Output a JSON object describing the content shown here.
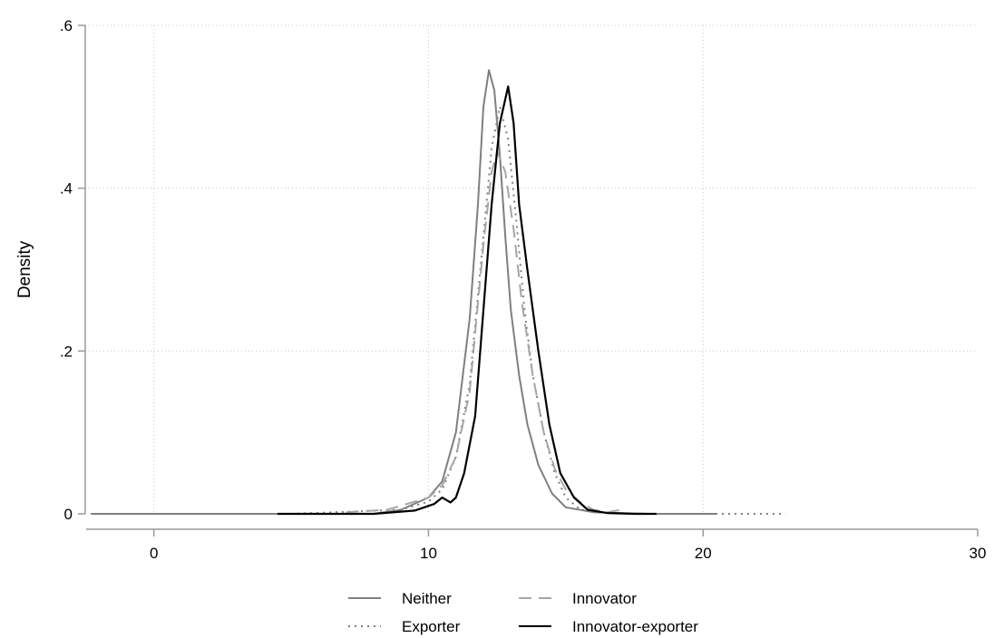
{
  "chart_data": {
    "type": "line",
    "title": "",
    "xlabel": "",
    "ylabel": "Density",
    "xlim": [
      -2.5,
      30
    ],
    "ylim": [
      0,
      0.6
    ],
    "grid": true,
    "legend_position": "bottom",
    "x_ticks": [
      {
        "value": 0,
        "label": "0"
      },
      {
        "value": 10,
        "label": "10"
      },
      {
        "value": 20,
        "label": "20"
      },
      {
        "value": 30,
        "label": "30"
      }
    ],
    "y_ticks": [
      {
        "value": 0,
        "label": "0"
      },
      {
        "value": 0.2,
        "label": ".2"
      },
      {
        "value": 0.4,
        "label": ".4"
      },
      {
        "value": 0.6,
        "label": ".6"
      }
    ],
    "series": [
      {
        "name": "Neither",
        "color": "#7f7f7f",
        "dash": "solid",
        "x": [
          -2.3,
          5,
          8,
          9,
          10,
          10.5,
          11,
          11.5,
          11.8,
          12.0,
          12.2,
          12.4,
          12.6,
          12.8,
          13.0,
          13.3,
          13.6,
          14.0,
          14.5,
          15.0,
          16,
          18,
          20.5
        ],
        "y": [
          0,
          0,
          0,
          0.005,
          0.02,
          0.04,
          0.1,
          0.24,
          0.38,
          0.5,
          0.545,
          0.52,
          0.44,
          0.34,
          0.25,
          0.17,
          0.11,
          0.06,
          0.025,
          0.008,
          0.002,
          0,
          0
        ]
      },
      {
        "name": "Exporter",
        "color": "#7f7f7f",
        "dash": "dotted",
        "x": [
          5,
          9,
          10,
          10.5,
          11,
          11.5,
          12.0,
          12.3,
          12.6,
          12.9,
          13.2,
          13.5,
          13.8,
          14.2,
          14.6,
          15.0,
          15.5,
          16,
          18,
          20,
          23
        ],
        "y": [
          0,
          0.005,
          0.015,
          0.03,
          0.07,
          0.16,
          0.34,
          0.45,
          0.5,
          0.46,
          0.36,
          0.25,
          0.17,
          0.1,
          0.05,
          0.02,
          0.006,
          0.002,
          0,
          0,
          0
        ]
      },
      {
        "name": "Innovator",
        "color": "#a6a6a6",
        "dash": "dashed",
        "x": [
          7,
          8.5,
          9,
          10,
          10.5,
          11,
          11.5,
          12.0,
          12.3,
          12.5,
          12.8,
          13.1,
          13.4,
          13.8,
          14.2,
          14.6,
          15.0,
          15.5,
          16,
          16.5,
          17.2
        ],
        "y": [
          0.002,
          0.005,
          0.01,
          0.02,
          0.035,
          0.07,
          0.15,
          0.33,
          0.42,
          0.445,
          0.42,
          0.35,
          0.26,
          0.17,
          0.1,
          0.055,
          0.03,
          0.015,
          0.005,
          0.002,
          0.006
        ]
      },
      {
        "name": "Innovator-exporter",
        "color": "#000000",
        "dash": "solid",
        "x": [
          4.5,
          8,
          9.5,
          10.2,
          10.5,
          10.8,
          11.0,
          11.3,
          11.7,
          12.0,
          12.3,
          12.6,
          12.9,
          13.1,
          13.3,
          13.6,
          14.0,
          14.4,
          14.8,
          15.3,
          15.8,
          16.5,
          17.5,
          18.3
        ],
        "y": [
          0,
          0,
          0.004,
          0.012,
          0.02,
          0.014,
          0.02,
          0.05,
          0.12,
          0.25,
          0.38,
          0.48,
          0.525,
          0.48,
          0.38,
          0.3,
          0.2,
          0.11,
          0.05,
          0.02,
          0.005,
          0.001,
          0,
          0
        ]
      }
    ]
  }
}
